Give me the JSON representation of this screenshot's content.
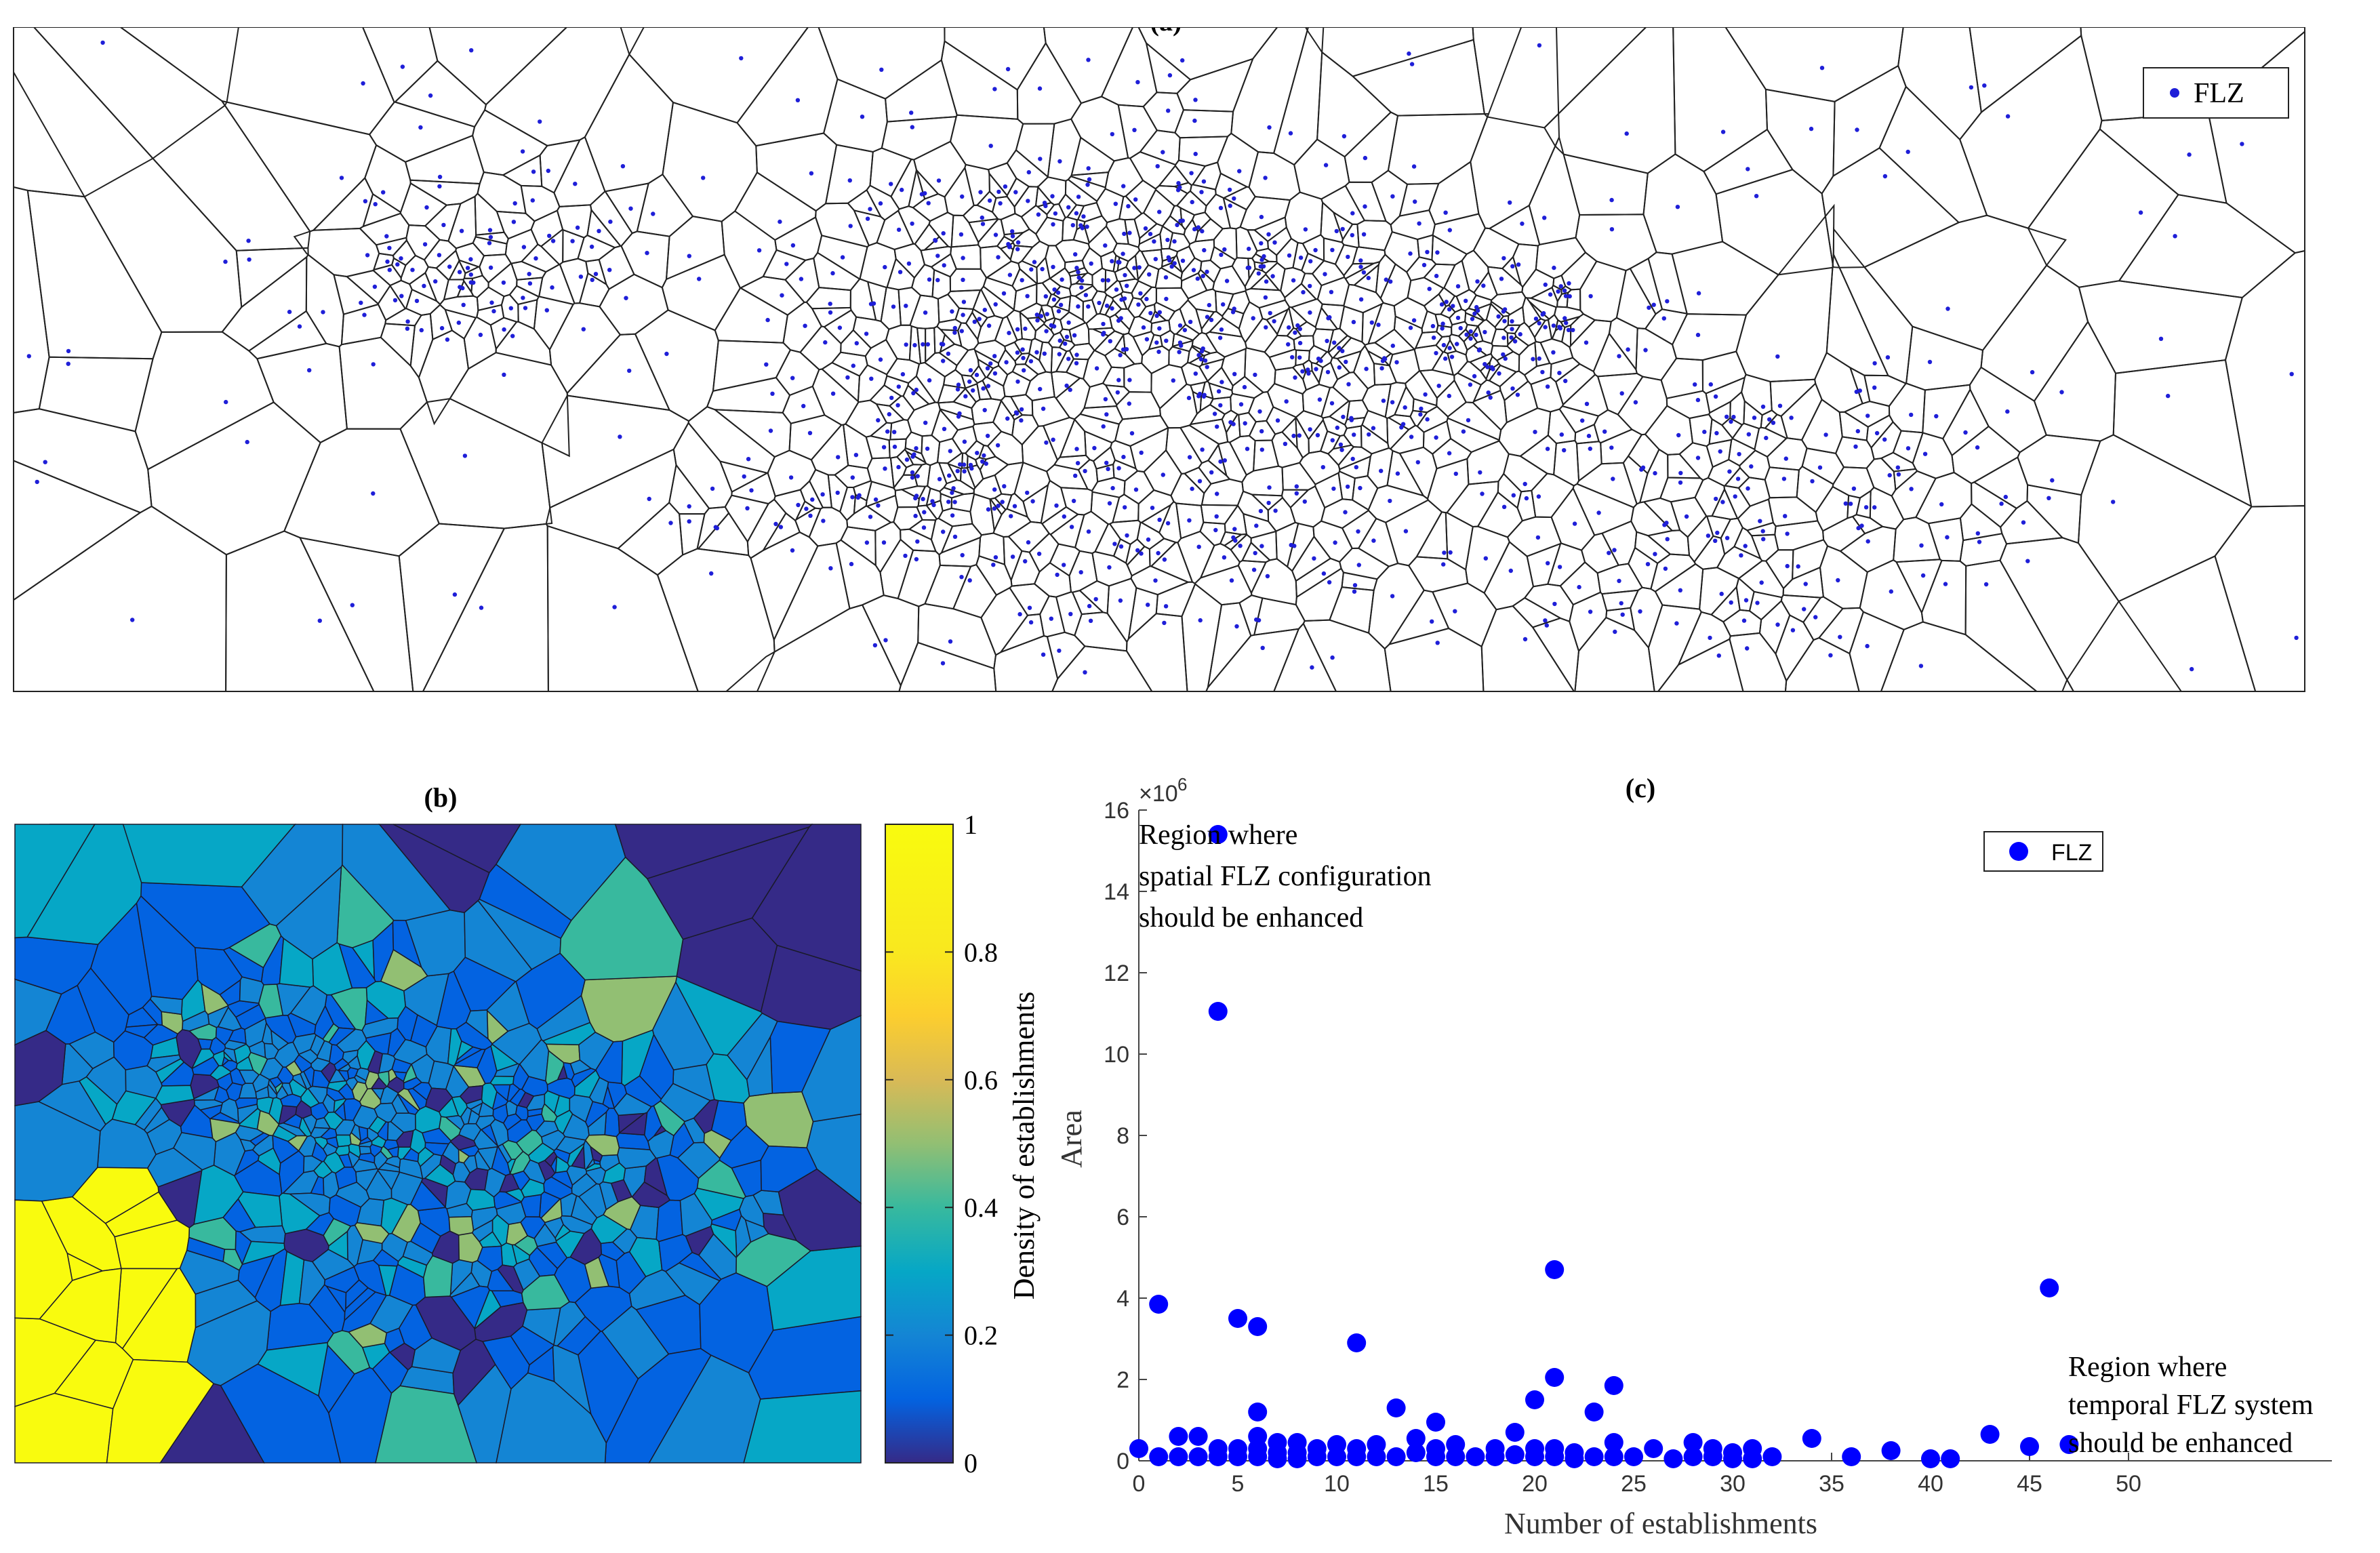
{
  "panel_a": {
    "title": "(a)",
    "legend_label": "FLZ",
    "point_color": "#1f1fd8",
    "edge_color": "#222222"
  },
  "panel_b": {
    "title": "(b)",
    "colorbar_label": "Density of establishments",
    "colorbar_ticks": [
      "0",
      "0.2",
      "0.4",
      "0.6",
      "0.8",
      "1"
    ]
  },
  "panel_c": {
    "title": "(c)",
    "exponent_label": "×10",
    "exponent_value": "6",
    "annotation_top": [
      "Region where",
      "spatial FLZ configuration",
      "should be enhanced"
    ],
    "annotation_bottom": [
      "Region where",
      "temporal FLZ system",
      "should be enhanced"
    ],
    "legend_label": "FLZ"
  },
  "chart_data": [
    {
      "type": "scatter",
      "panel": "a",
      "title": "(a)",
      "description_series": "Voronoi tessellation of FLZ establishment locations",
      "series": [
        {
          "name": "FLZ",
          "values": []
        }
      ]
    },
    {
      "type": "heatmap",
      "panel": "b",
      "title": "(b)",
      "zlabel": "Density of establishments",
      "zlim": [
        0,
        1
      ],
      "ticks": [
        0,
        0.2,
        0.4,
        0.6,
        0.8,
        1
      ]
    },
    {
      "type": "scatter",
      "panel": "c",
      "title": "(c)",
      "xlabel": "Number of establishments",
      "ylabel": "Area",
      "xlim": [
        0,
        50
      ],
      "ylim": [
        0,
        16
      ],
      "y_multiplier": "1e6",
      "xticks": [
        0,
        5,
        10,
        15,
        20,
        25,
        30,
        35,
        40,
        45,
        50
      ],
      "yticks": [
        0,
        2,
        4,
        6,
        8,
        10,
        12,
        14,
        16
      ],
      "series": [
        {
          "name": "FLZ",
          "color": "#0000ff",
          "x": [
            0,
            1,
            1,
            2,
            2,
            3,
            3,
            4,
            4,
            4,
            4,
            5,
            5,
            5,
            6,
            6,
            6,
            6,
            6,
            7,
            7,
            7,
            8,
            8,
            8,
            9,
            9,
            10,
            10,
            11,
            11,
            11,
            12,
            12,
            13,
            13,
            14,
            14,
            15,
            15,
            15,
            16,
            16,
            17,
            18,
            18,
            19,
            19,
            20,
            20,
            20,
            21,
            21,
            21,
            21,
            22,
            22,
            23,
            23,
            24,
            24,
            24,
            25,
            26,
            27,
            28,
            28,
            29,
            29,
            30,
            30,
            31,
            31,
            32,
            34,
            36,
            38,
            40,
            41,
            43,
            45,
            46,
            47
          ],
          "y": [
            0.3,
            0.1,
            3.85,
            0.6,
            0.1,
            0.6,
            0.1,
            15.4,
            11.05,
            0.3,
            0.1,
            3.5,
            0.3,
            0.1,
            3.3,
            1.2,
            0.6,
            0.3,
            0.1,
            0.45,
            0.2,
            0.05,
            0.45,
            0.2,
            0.05,
            0.3,
            0.1,
            0.4,
            0.1,
            2.9,
            0.3,
            0.1,
            0.4,
            0.1,
            1.3,
            0.1,
            0.55,
            0.2,
            0.95,
            0.3,
            0.1,
            0.4,
            0.1,
            0.1,
            0.3,
            0.1,
            0.7,
            0.15,
            1.5,
            0.3,
            0.1,
            4.7,
            2.05,
            0.3,
            0.1,
            0.2,
            0.05,
            1.2,
            0.1,
            1.85,
            0.45,
            0.1,
            0.1,
            0.3,
            0.05,
            0.45,
            0.1,
            0.3,
            0.1,
            0.2,
            0.05,
            0.3,
            0.05,
            0.1,
            0.55,
            0.1,
            0.25,
            0.05,
            0.05,
            0.65,
            0.35,
            4.25,
            0.4
          ]
        }
      ],
      "legend": "top-right"
    }
  ]
}
